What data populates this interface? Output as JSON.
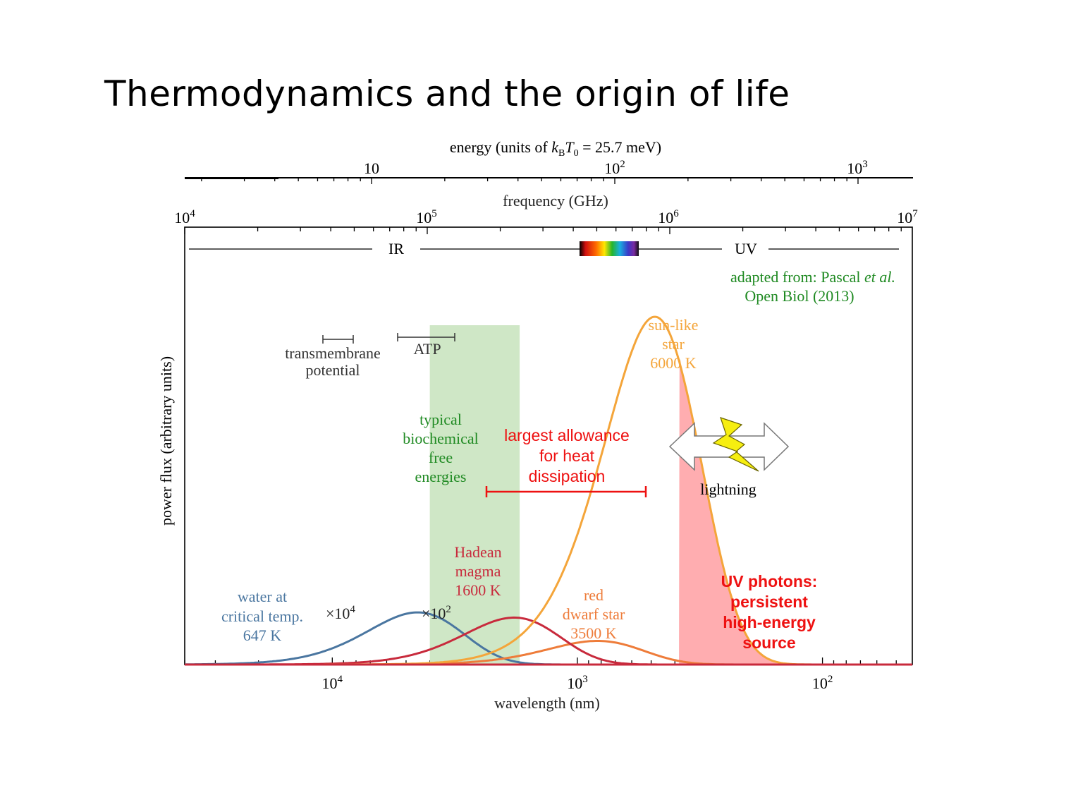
{
  "slide": {
    "title": "Thermodynamics and the origin of life"
  },
  "chart_data": {
    "type": "line",
    "title": "",
    "xlabel": "wavelength (nm)",
    "ylabel": "power flux (arbitrary units)",
    "x_scale": "log",
    "x_reversed": true,
    "xlim": [
      40000,
      43
    ],
    "ylim": [
      0,
      1
    ],
    "grid": false,
    "axes": {
      "energy_label": {
        "pre": "energy (units of ",
        "k": "k",
        "B": "B",
        "T": "T",
        "zero": "0",
        "post": " = 25.7 meV)"
      },
      "energy_ticks": [
        {
          "base": "10",
          "exp": ""
        },
        {
          "base": "10",
          "exp": "2"
        },
        {
          "base": "10",
          "exp": "3"
        }
      ],
      "frequency_label": "frequency (GHz)",
      "frequency_ticks": [
        {
          "base": "10",
          "exp": "4"
        },
        {
          "base": "10",
          "exp": "5"
        },
        {
          "base": "10",
          "exp": "6"
        },
        {
          "base": "10",
          "exp": "7"
        }
      ],
      "wavelength_ticks": [
        {
          "base": "10",
          "exp": "4"
        },
        {
          "base": "10",
          "exp": "3"
        },
        {
          "base": "10",
          "exp": "2"
        }
      ]
    },
    "bands": {
      "ir": "IR",
      "uv": "UV"
    },
    "series": [
      {
        "name": "water at critical temp. 647 K",
        "label_lines": [
          "water at",
          "critical temp.",
          "647 K"
        ],
        "temperature_K": 647,
        "scale_label": {
          "pre": "×10",
          "exp": "4"
        },
        "peak_wavelength_nm": 4480,
        "peak_height": 0.15,
        "color": "#4a76a0"
      },
      {
        "name": "Hadean magma 1600 K",
        "label_lines": [
          "Hadean",
          "magma",
          "1600 K"
        ],
        "temperature_K": 1600,
        "scale_label": {
          "pre": "×10",
          "exp": "2"
        },
        "peak_wavelength_nm": 1810,
        "peak_height": 0.135,
        "color": "#c82a3c"
      },
      {
        "name": "sun-like star 6000 K",
        "label_lines": [
          "sun-like",
          "star",
          "6000 K"
        ],
        "temperature_K": 6000,
        "peak_wavelength_nm": 483,
        "peak_height": 1.0,
        "color": "#f4a53a"
      },
      {
        "name": "red dwarf star 3500 K",
        "label_lines": [
          "red",
          "dwarf star",
          "3500 K"
        ],
        "temperature_K": 3500,
        "peak_wavelength_nm": 828,
        "peak_height": 0.068,
        "color": "#ee7c3a"
      }
    ],
    "shaded_regions": [
      {
        "name": "typical biochemical free energies",
        "label_lines": [
          "typical",
          "biochemical",
          "free",
          "energies"
        ],
        "from_nm": 4000,
        "to_nm": 1720,
        "color": "#cfe7c6",
        "text_color": "#1f8a22"
      },
      {
        "name": "UV tail",
        "from_nm": 385,
        "to_nm": 43,
        "color": "#ffadb0"
      }
    ],
    "annotations": {
      "source_line1": "adapted from: Pascal ",
      "source_etal": "et al.",
      "source_line2": "Open Biol (2013)",
      "source_color": "#1f8a22",
      "transmembrane": [
        "transmembrane",
        "potential"
      ],
      "atp": "ATP",
      "heat": [
        "largest allowance",
        "for heat",
        "dissipation"
      ],
      "heat_color": "#ee1111",
      "lightning": "lightning",
      "uv_photons": [
        "UV photons:",
        "persistent",
        "high-energy",
        "source"
      ]
    }
  }
}
